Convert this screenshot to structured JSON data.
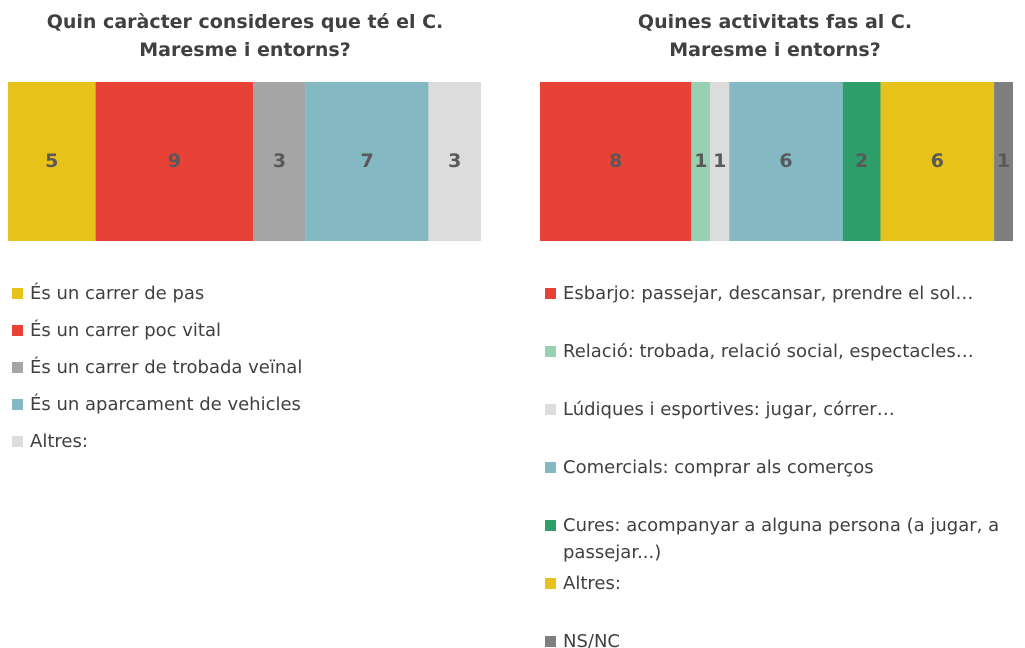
{
  "chart_data": [
    {
      "type": "bar",
      "stacked": true,
      "orientation": "horizontal",
      "title": "Quin caràcter consideres que té el C. Maresme i entorns?",
      "series": [
        {
          "name": "És un carrer de pas",
          "color": "#e6c21a",
          "values": [
            5
          ]
        },
        {
          "name": "És un carrer poc vital",
          "color": "#e84236",
          "values": [
            9
          ]
        },
        {
          "name": "És un carrer de trobada veïnal",
          "color": "#a5a5a5",
          "values": [
            3
          ]
        },
        {
          "name": "És un aparcament de vehicles",
          "color": "#84b9c4",
          "values": [
            7
          ]
        },
        {
          "name": "Altres:",
          "color": "#dcdcdc",
          "values": [
            3
          ]
        }
      ]
    },
    {
      "type": "bar",
      "stacked": true,
      "orientation": "horizontal",
      "title": "Quines activitats fas al C. Maresme i entorns?",
      "series": [
        {
          "name": "Esbarjo: passejar, descansar, prendre el sol…",
          "color": "#e84236",
          "values": [
            8
          ]
        },
        {
          "name": "Relació: trobada, relació social, espectacles…",
          "color": "#98d1b2",
          "values": [
            1
          ]
        },
        {
          "name": "Lúdiques i esportives: jugar, córrer…",
          "color": "#dcdcdc",
          "values": [
            1
          ]
        },
        {
          "name": "Comercials: comprar als comerços",
          "color": "#84b9c4",
          "values": [
            6
          ]
        },
        {
          "name": "Cures: acompanyar a alguna persona (a jugar, a passejar...)",
          "color": "#2e9e6a",
          "values": [
            2
          ]
        },
        {
          "name": "Altres:",
          "color": "#e6c21a",
          "values": [
            6
          ]
        },
        {
          "name": "NS/NC",
          "color": "#7f7f7f",
          "values": [
            1
          ]
        }
      ]
    }
  ]
}
